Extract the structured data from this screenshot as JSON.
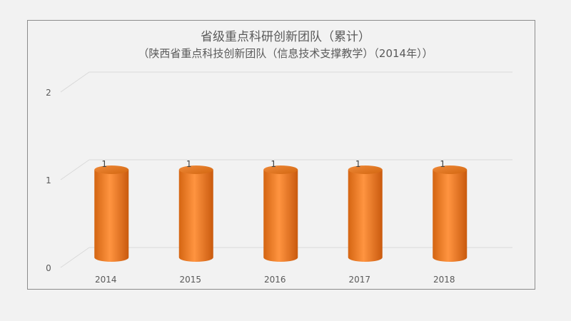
{
  "chart_data": {
    "type": "bar",
    "title": "省级重点科研创新团队（累计）",
    "subtitle": "（陕西省重点科技创新团队（信息技术支撑教学）（2014年））",
    "categories": [
      "2014",
      "2015",
      "2016",
      "2017",
      "2018"
    ],
    "values": [
      1,
      1,
      1,
      1,
      1
    ],
    "y_ticks": [
      "0",
      "1",
      "2"
    ],
    "ylim": [
      0,
      2
    ],
    "grid": true,
    "legend": "none",
    "bar_color": "#e87722",
    "bar_highlight": "#ff9440"
  }
}
